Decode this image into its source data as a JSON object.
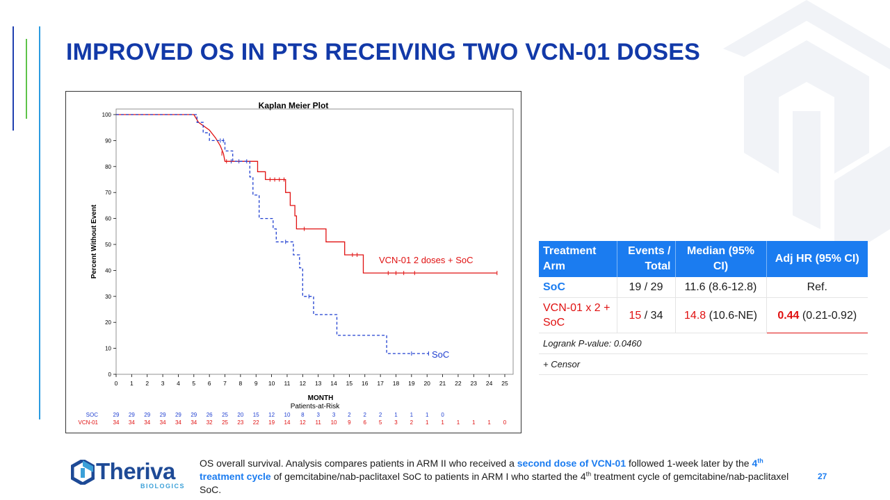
{
  "slide": {
    "title": "IMPROVED OS IN PTS RECEIVING TWO VCN-01 DOSES",
    "page_number": "27"
  },
  "colors": {
    "title": "#1239a8",
    "accent_blue": "#1b7cf0",
    "vcn_red": "#e01010",
    "soc_blue": "#1f3fd0"
  },
  "chart_data": {
    "type": "line",
    "subtype": "kaplan-meier step",
    "title": "Kaplan Meier Plot",
    "xlabel": "MONTH",
    "ylabel": "Percent Without Event",
    "xlim": [
      0,
      25
    ],
    "ylim": [
      0,
      100
    ],
    "x_ticks": [
      0,
      1,
      2,
      3,
      4,
      5,
      6,
      7,
      8,
      9,
      10,
      11,
      12,
      13,
      14,
      15,
      16,
      17,
      18,
      19,
      20,
      21,
      22,
      23,
      24,
      25
    ],
    "y_ticks": [
      0,
      10,
      20,
      30,
      40,
      50,
      60,
      70,
      80,
      90,
      100
    ],
    "series": [
      {
        "name": "VCN-01",
        "label": "VCN-01 2 doses + SoC",
        "color": "#e01010",
        "style": "solid",
        "steps": [
          [
            0,
            100
          ],
          [
            5,
            100
          ],
          [
            5.3,
            97
          ],
          [
            6,
            94
          ],
          [
            6.4,
            91
          ],
          [
            6.7,
            88
          ],
          [
            6.9,
            85
          ],
          [
            7,
            82
          ],
          [
            9.1,
            82
          ],
          [
            9.1,
            78
          ],
          [
            9.6,
            78
          ],
          [
            9.6,
            75
          ],
          [
            10.9,
            75
          ],
          [
            10.9,
            70
          ],
          [
            11.2,
            70
          ],
          [
            11.2,
            65
          ],
          [
            11.5,
            65
          ],
          [
            11.5,
            61
          ],
          [
            11.6,
            61
          ],
          [
            11.6,
            56
          ],
          [
            13.5,
            56
          ],
          [
            13.5,
            51
          ],
          [
            14.7,
            51
          ],
          [
            14.7,
            46
          ],
          [
            15.9,
            46
          ],
          [
            15.9,
            39
          ],
          [
            24.5,
            39
          ]
        ],
        "censors": [
          [
            6.8,
            85
          ],
          [
            7.1,
            82
          ],
          [
            9.9,
            75
          ],
          [
            10.2,
            75
          ],
          [
            10.5,
            75
          ],
          [
            10.8,
            75
          ],
          [
            12.1,
            56
          ],
          [
            15.2,
            46
          ],
          [
            15.5,
            46
          ],
          [
            17.5,
            39
          ],
          [
            18,
            39
          ],
          [
            18.5,
            39
          ],
          [
            19.2,
            39
          ],
          [
            24.5,
            39
          ]
        ]
      },
      {
        "name": "SoC",
        "label": "SoC",
        "color": "#1f3fd0",
        "style": "dashed",
        "steps": [
          [
            0,
            100
          ],
          [
            5.2,
            100
          ],
          [
            5.2,
            97
          ],
          [
            5.6,
            97
          ],
          [
            5.6,
            93
          ],
          [
            6,
            93
          ],
          [
            6,
            90
          ],
          [
            7,
            90
          ],
          [
            7,
            86
          ],
          [
            7.5,
            86
          ],
          [
            7.5,
            82
          ],
          [
            8.6,
            82
          ],
          [
            8.6,
            76
          ],
          [
            8.8,
            76
          ],
          [
            8.8,
            69
          ],
          [
            9.2,
            69
          ],
          [
            9.2,
            60
          ],
          [
            10.1,
            60
          ],
          [
            10.1,
            56
          ],
          [
            10.3,
            56
          ],
          [
            10.3,
            51
          ],
          [
            11.4,
            51
          ],
          [
            11.4,
            46
          ],
          [
            11.8,
            46
          ],
          [
            11.8,
            41
          ],
          [
            12,
            41
          ],
          [
            12,
            30
          ],
          [
            12.7,
            30
          ],
          [
            12.7,
            23
          ],
          [
            14.2,
            23
          ],
          [
            14.2,
            15
          ],
          [
            17.4,
            15
          ],
          [
            17.4,
            8
          ],
          [
            20.1,
            8
          ]
        ],
        "censors": [
          [
            6.7,
            90
          ],
          [
            6.9,
            90
          ],
          [
            7.4,
            82
          ],
          [
            7.9,
            82
          ],
          [
            8.4,
            82
          ],
          [
            10.9,
            51
          ],
          [
            12.4,
            30
          ],
          [
            19,
            8
          ],
          [
            20.1,
            8
          ]
        ]
      }
    ],
    "risk_table": {
      "title": "Patients-at-Risk",
      "rows": [
        {
          "label": "SOC",
          "color": "#1f3fd0",
          "values": [
            "29",
            "29",
            "29",
            "29",
            "29",
            "29",
            "26",
            "25",
            "20",
            "15",
            "12",
            "10",
            "8",
            "3",
            "3",
            "2",
            "2",
            "2",
            "1",
            "1",
            "1",
            "0"
          ]
        },
        {
          "label": "VCN-01",
          "color": "#e01010",
          "values": [
            "34",
            "34",
            "34",
            "34",
            "34",
            "34",
            "32",
            "25",
            "23",
            "22",
            "19",
            "14",
            "12",
            "11",
            "10",
            "9",
            "6",
            "5",
            "3",
            "2",
            "1",
            "1",
            "1",
            "1",
            "1",
            "0"
          ]
        }
      ]
    }
  },
  "table": {
    "headers": [
      "Treatment Arm",
      "Events / Total",
      "Median (95% CI)",
      "Adj HR (95% CI)"
    ],
    "rows": {
      "soc": {
        "arm": "SoC",
        "events": "19 / 29",
        "median": "11.6 (8.6-12.8)",
        "hr": "Ref."
      },
      "vcn": {
        "arm": "VCN-01 x 2 + SoC",
        "events_num": "15",
        "events_total": " / 34",
        "median_num": "14.8",
        "median_ci": " (10.6-NE)",
        "hr_num": "0.44",
        "hr_ci": " (0.21-0.92)"
      }
    },
    "logrank": "Logrank P-value:  0.0460",
    "censor_note": "+ Censor"
  },
  "logo": {
    "name": "Theriva",
    "sub": "BIOLOGICS"
  },
  "footnote": {
    "p1": "OS overall survival. Analysis compares patients in ARM II who received a ",
    "hl1": "second dose of VCN-01",
    "p2": " followed 1-week later by the ",
    "hl2a": "4",
    "hl2_sup": "th",
    "hl2b": " treatment cycle",
    "p3": " of gemcitabine/nab-paclitaxel SoC to patients in ARM I who started the 4",
    "p3_sup": "th",
    "p4": " treatment cycle of gemcitabine/nab-paclitaxel SoC."
  }
}
